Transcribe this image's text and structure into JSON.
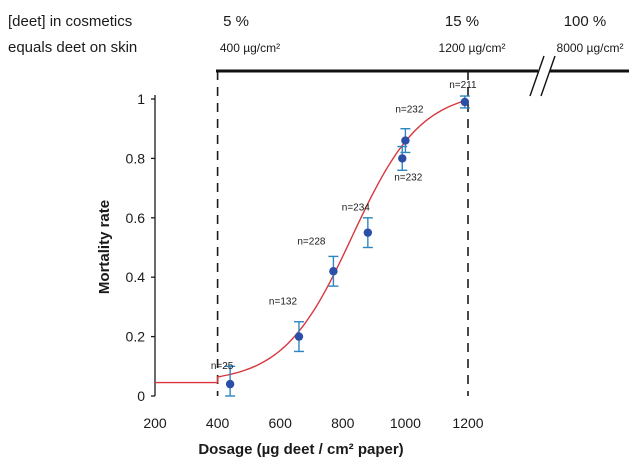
{
  "header": {
    "line1": "[deet] in cosmetics",
    "line2": "equals deet on skin"
  },
  "concentration_scale": [
    {
      "percent": "5 %",
      "dose": "400 µg/cm²",
      "x_dosage": 400
    },
    {
      "percent": "15 %",
      "dose": "1200 µg/cm²",
      "x_dosage": 1200
    },
    {
      "percent": "100 %",
      "dose": "8000 µg/cm²"
    }
  ],
  "chart_data": {
    "type": "scatter",
    "xlabel": "Dosage (µg deet / cm² paper)",
    "ylabel": "Mortality rate",
    "xlim": [
      200,
      1200
    ],
    "ylim": [
      0,
      1
    ],
    "x_ticks": [
      200,
      400,
      600,
      800,
      1000,
      1200
    ],
    "y_ticks": [
      0,
      0.2,
      0.4,
      0.6,
      0.8,
      1
    ],
    "y_tick_labels": [
      "0",
      "0.2",
      "0.4",
      "0.6",
      "0.8",
      "1"
    ],
    "points": [
      {
        "x": 440,
        "y": 0.04,
        "err_low": 0.0,
        "err_high": 0.1,
        "n": "n=25"
      },
      {
        "x": 660,
        "y": 0.2,
        "err_low": 0.15,
        "err_high": 0.25,
        "n": "n=132"
      },
      {
        "x": 770,
        "y": 0.42,
        "err_low": 0.37,
        "err_high": 0.47,
        "n": "n=228"
      },
      {
        "x": 880,
        "y": 0.55,
        "err_low": 0.5,
        "err_high": 0.6,
        "n": "n=234"
      },
      {
        "x": 990,
        "y": 0.8,
        "err_low": 0.76,
        "err_high": 0.84,
        "n": "n=232"
      },
      {
        "x": 1000,
        "y": 0.86,
        "err_low": 0.82,
        "err_high": 0.9,
        "n": "n=232"
      },
      {
        "x": 1190,
        "y": 0.99,
        "err_low": 0.97,
        "err_high": 1.01,
        "n": "n=211"
      }
    ],
    "fit_curve": {
      "type": "logistic",
      "bottom": 0.045,
      "top": 1.03,
      "x50": 830,
      "slope": 110
    },
    "reference_lines_x": [
      400,
      1200
    ],
    "colors": {
      "point": "#2b4ea6",
      "error_bar": "#2e86c1",
      "fit": "#d9363e",
      "axis": "#1a1a1a",
      "scale_bar": "#111111"
    }
  }
}
